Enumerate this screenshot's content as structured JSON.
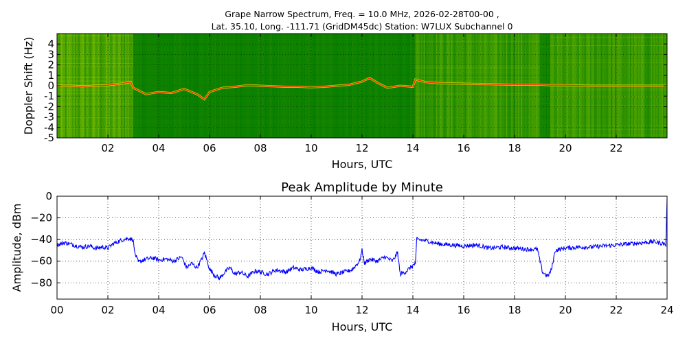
{
  "chart_data": [
    {
      "type": "heatmap",
      "title_line1": "Grape Narrow Spectrum, Freq. = 10.0 MHz, 2026-02-28T00-00 ,",
      "title_line2": "Lat.  35.10, Long. -111.71 (GridDM45dc) Station: W7LUX Subchannel 0",
      "xlabel": "Hours, UTC",
      "ylabel": "Doppler Shift (Hz)",
      "xlim": [
        0,
        24
      ],
      "ylim": [
        -5,
        5
      ],
      "x_ticks": [
        2,
        4,
        6,
        8,
        10,
        12,
        14,
        16,
        18,
        20,
        22
      ],
      "x_tick_labels": [
        "02",
        "04",
        "06",
        "08",
        "10",
        "12",
        "14",
        "16",
        "18",
        "20",
        "22"
      ],
      "y_ticks": [
        -5,
        -4,
        -3,
        -2,
        -1,
        0,
        1,
        2,
        3,
        4
      ],
      "y_tick_labels": [
        "-5",
        "-4",
        "-3",
        "-2",
        "-1",
        "0",
        "1",
        "2",
        "3",
        "4"
      ],
      "grid": true,
      "colors": {
        "background": "#007a00",
        "noise": "#c8e600",
        "trace": "#ff2000",
        "trace_weak": "#f0f000"
      },
      "regions": [
        {
          "x": [
            0.0,
            3.0
          ],
          "noise": 0.55
        },
        {
          "x": [
            3.0,
            14.1
          ],
          "noise": 0.1
        },
        {
          "x": [
            14.1,
            19.0
          ],
          "noise": 0.4
        },
        {
          "x": [
            19.0,
            19.4
          ],
          "noise": 0.12
        },
        {
          "x": [
            19.4,
            24.0
          ],
          "noise": 0.4
        }
      ],
      "doppler_trace": {
        "x": [
          0.0,
          0.5,
          1.0,
          1.5,
          2.0,
          2.5,
          2.9,
          3.0,
          3.5,
          4.0,
          4.5,
          5.0,
          5.5,
          5.8,
          6.0,
          6.5,
          7.0,
          7.5,
          8.0,
          8.5,
          9.0,
          9.5,
          10.0,
          10.5,
          11.0,
          11.5,
          12.0,
          12.3,
          12.6,
          13.0,
          13.5,
          14.0,
          14.1,
          14.5,
          15.0,
          16.0,
          17.0,
          18.0,
          19.0,
          19.4,
          20.0,
          21.0,
          22.0,
          23.0,
          24.0
        ],
        "y": [
          0.0,
          0.0,
          -0.05,
          0.0,
          0.05,
          0.2,
          0.35,
          -0.2,
          -0.8,
          -0.6,
          -0.7,
          -0.3,
          -0.8,
          -1.3,
          -0.6,
          -0.2,
          -0.1,
          0.05,
          0.0,
          -0.05,
          -0.1,
          -0.1,
          -0.15,
          -0.1,
          0.0,
          0.1,
          0.4,
          0.75,
          0.3,
          -0.2,
          0.0,
          -0.1,
          0.6,
          0.35,
          0.25,
          0.2,
          0.15,
          0.1,
          0.1,
          0.05,
          0.05,
          0.0,
          0.0,
          0.0,
          0.0
        ]
      }
    },
    {
      "type": "line",
      "title": "Peak Amplitude by Minute",
      "xlabel": "Hours, UTC",
      "ylabel": "Amplitude, dBm",
      "xlim": [
        0,
        24
      ],
      "ylim": [
        -95,
        0
      ],
      "x_ticks": [
        0,
        2,
        4,
        6,
        8,
        10,
        12,
        14,
        16,
        18,
        20,
        22,
        24
      ],
      "x_tick_labels": [
        "00",
        "02",
        "04",
        "06",
        "08",
        "10",
        "12",
        "14",
        "16",
        "18",
        "20",
        "22",
        "24"
      ],
      "y_ticks": [
        0,
        -20,
        -40,
        -60,
        -80
      ],
      "y_tick_labels": [
        "0",
        "−20",
        "−40",
        "−60",
        "−80"
      ],
      "grid": true,
      "series": [
        {
          "color": "#0000ff",
          "x": [
            0.0,
            0.3,
            0.5,
            0.8,
            1.0,
            1.3,
            1.5,
            1.8,
            2.0,
            2.2,
            2.4,
            2.6,
            2.8,
            3.0,
            3.05,
            3.2,
            3.5,
            3.8,
            4.0,
            4.3,
            4.6,
            4.9,
            5.1,
            5.3,
            5.5,
            5.7,
            5.8,
            6.0,
            6.2,
            6.4,
            6.6,
            6.8,
            7.0,
            7.2,
            7.5,
            7.8,
            8.0,
            8.3,
            8.6,
            9.0,
            9.3,
            9.6,
            10.0,
            10.3,
            10.6,
            11.0,
            11.3,
            11.6,
            11.9,
            12.0,
            12.1,
            12.3,
            12.6,
            12.9,
            13.2,
            13.4,
            13.5,
            13.7,
            14.0,
            14.1,
            14.15,
            14.5,
            15.0,
            15.5,
            16.0,
            16.5,
            17.0,
            17.5,
            18.0,
            18.5,
            18.9,
            19.0,
            19.1,
            19.3,
            19.45,
            19.6,
            20.0,
            20.5,
            21.0,
            21.5,
            22.0,
            22.5,
            23.0,
            23.5,
            23.9,
            23.95,
            24.0
          ],
          "y": [
            -45,
            -43,
            -44,
            -46,
            -47,
            -46,
            -48,
            -47,
            -48,
            -44,
            -42,
            -40,
            -39,
            -40,
            -52,
            -61,
            -58,
            -57,
            -59,
            -58,
            -60,
            -56,
            -66,
            -62,
            -66,
            -58,
            -52,
            -67,
            -73,
            -76,
            -70,
            -66,
            -72,
            -70,
            -74,
            -69,
            -70,
            -72,
            -68,
            -70,
            -66,
            -68,
            -66,
            -70,
            -68,
            -72,
            -70,
            -68,
            -60,
            -50,
            -62,
            -58,
            -60,
            -56,
            -60,
            -52,
            -72,
            -70,
            -64,
            -62,
            -40,
            -41,
            -44,
            -45,
            -46,
            -45,
            -48,
            -47,
            -48,
            -49,
            -49,
            -60,
            -70,
            -74,
            -68,
            -50,
            -48,
            -47,
            -47,
            -46,
            -45,
            -44,
            -43,
            -42,
            -44,
            -46,
            -2
          ]
        }
      ]
    }
  ]
}
